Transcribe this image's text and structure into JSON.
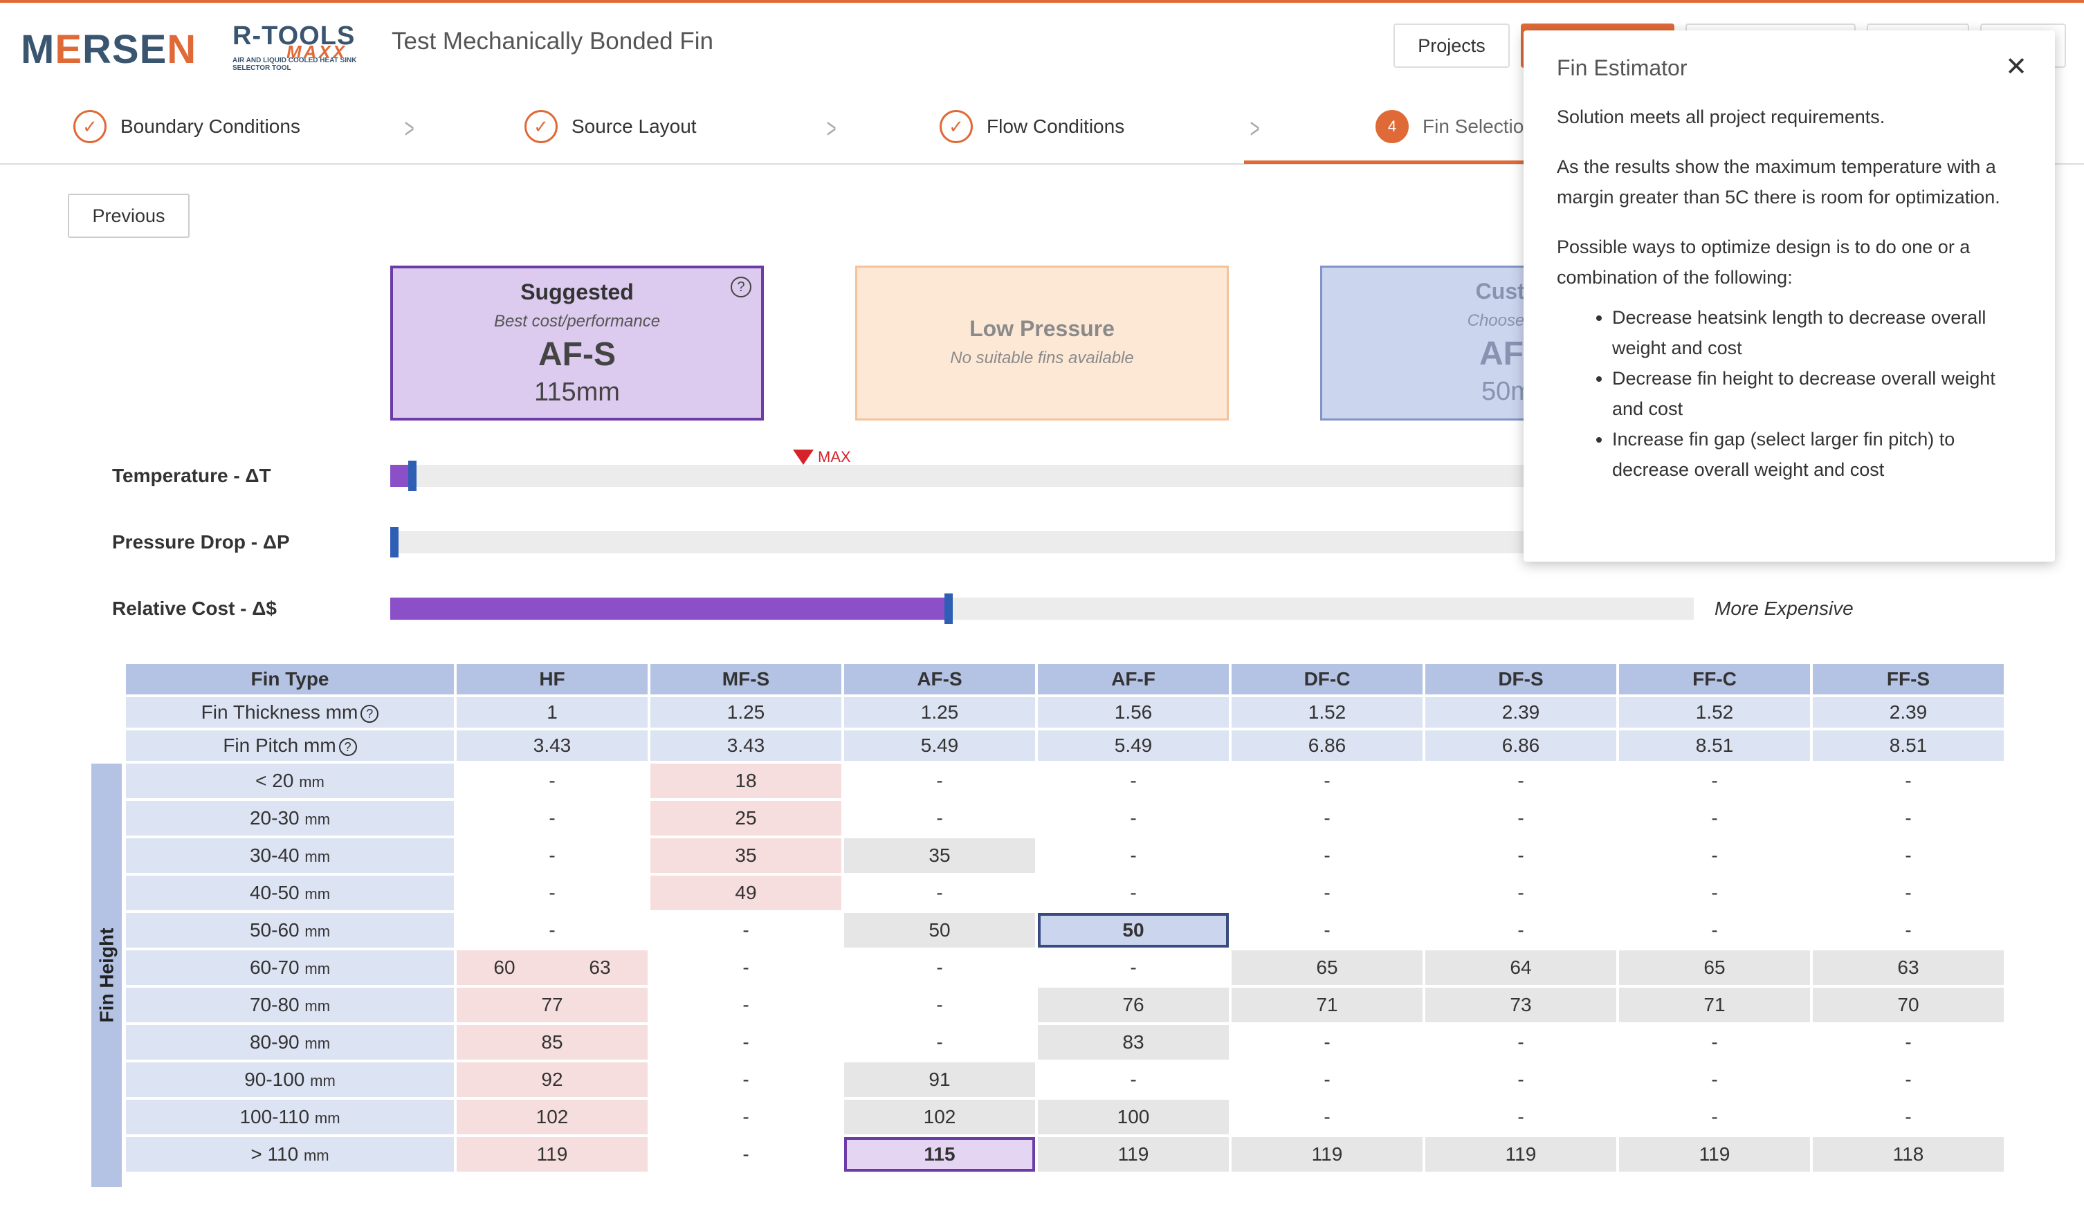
{
  "header": {
    "logo_text": "MERSEN",
    "product_logo": "R-TOOLS",
    "product_logo_sub": "MAXX",
    "product_tagline": "AIR AND LIQUID COOLED HEAT SINK SELECTOR TOOL",
    "title": "Test Mechanically Bonded Fin",
    "projects_label": "Projects"
  },
  "steps": [
    {
      "label": "Boundary Conditions",
      "icon": "check-icon",
      "done": true
    },
    {
      "label": "Source Layout",
      "icon": "check-icon",
      "done": true
    },
    {
      "label": "Flow Conditions",
      "icon": "check-icon",
      "done": true
    },
    {
      "label": "Fin Selectio",
      "number": "4",
      "active": true
    }
  ],
  "previous_label": "Previous",
  "cards": {
    "suggested": {
      "title": "Suggested",
      "subtitle": "Best cost/performance",
      "fin": "AF-S",
      "size": "115mm"
    },
    "low_pressure": {
      "title": "Low Pressure",
      "subtitle": "No suitable fins available"
    },
    "custom": {
      "title": "Custo",
      "subtitle": "Choose yo",
      "fin": "AF-",
      "size": "50m"
    }
  },
  "bars": {
    "temperature": {
      "label": "Temperature - ΔT",
      "fill_fraction": 0.014,
      "marker_fraction": 0.014
    },
    "pressure": {
      "label": "Pressure Drop - ΔP",
      "fill_fraction": 0.0,
      "marker_fraction": 0.0
    },
    "cost": {
      "label": "Relative Cost - Δ$",
      "fill_fraction": 0.425,
      "marker_fraction": 0.425
    },
    "max_label": "MAX",
    "more_expensive": "More Expensive"
  },
  "table": {
    "fin_type_label": "Fin Type",
    "thickness_label": "Fin Thickness mm",
    "pitch_label": "Fin Pitch mm",
    "fin_height_label": "Fin Height",
    "unit": "mm",
    "columns": [
      "HF",
      "MF-S",
      "AF-S",
      "AF-F",
      "DF-C",
      "DF-S",
      "FF-C",
      "FF-S"
    ],
    "thickness": [
      "1",
      "1.25",
      "1.25",
      "1.56",
      "1.52",
      "2.39",
      "1.52",
      "2.39"
    ],
    "pitch": [
      "3.43",
      "3.43",
      "5.49",
      "5.49",
      "6.86",
      "6.86",
      "8.51",
      "8.51"
    ],
    "rows": [
      {
        "range": "< 20",
        "cells": [
          "-",
          "18",
          "-",
          "-",
          "-",
          "-",
          "-",
          "-"
        ]
      },
      {
        "range": "20-30",
        "cells": [
          "-",
          "25",
          "-",
          "-",
          "-",
          "-",
          "-",
          "-"
        ]
      },
      {
        "range": "30-40",
        "cells": [
          "-",
          "35",
          "35",
          "-",
          "-",
          "-",
          "-",
          "-"
        ]
      },
      {
        "range": "40-50",
        "cells": [
          "-",
          "49",
          "-",
          "-",
          "-",
          "-",
          "-",
          "-"
        ]
      },
      {
        "range": "50-60",
        "cells": [
          "-",
          "-",
          "50",
          "50",
          "-",
          "-",
          "-",
          "-"
        ]
      },
      {
        "range": "60-70",
        "cells": [
          "60",
          "-",
          "-",
          "-",
          "65",
          "64",
          "65",
          "63"
        ],
        "extra": "63"
      },
      {
        "range": "70-80",
        "cells": [
          "77",
          "-",
          "-",
          "76",
          "71",
          "73",
          "71",
          "70"
        ]
      },
      {
        "range": "80-90",
        "cells": [
          "85",
          "-",
          "-",
          "83",
          "-",
          "-",
          "-",
          "-"
        ]
      },
      {
        "range": "90-100",
        "cells": [
          "92",
          "-",
          "91",
          "-",
          "-",
          "-",
          "-",
          "-"
        ]
      },
      {
        "range": "100-110",
        "cells": [
          "102",
          "-",
          "102",
          "100",
          "-",
          "-",
          "-",
          "-"
        ]
      },
      {
        "range": "> 110",
        "cells": [
          "119",
          "-",
          "115",
          "119",
          "119",
          "119",
          "119",
          "118"
        ]
      }
    ]
  },
  "popover": {
    "title": "Fin Estimator",
    "line1": "Solution meets all project requirements.",
    "line2": "As the results show the maximum temperature with a margin greater than 5C there is room for optimization.",
    "line3": "Possible ways to optimize design is to do one or a combination of the following:",
    "bullets": [
      "Decrease heatsink length to decrease overall weight and cost",
      "Decrease fin height to decrease overall weight and cost",
      "Increase fin gap (select larger fin pitch) to decrease overall weight and cost"
    ]
  },
  "colors": {
    "accent": "#e06a37",
    "suggested": "#6c3ba8",
    "bar_fill": "#8b4fc8",
    "marker": "#2f5fb5"
  }
}
